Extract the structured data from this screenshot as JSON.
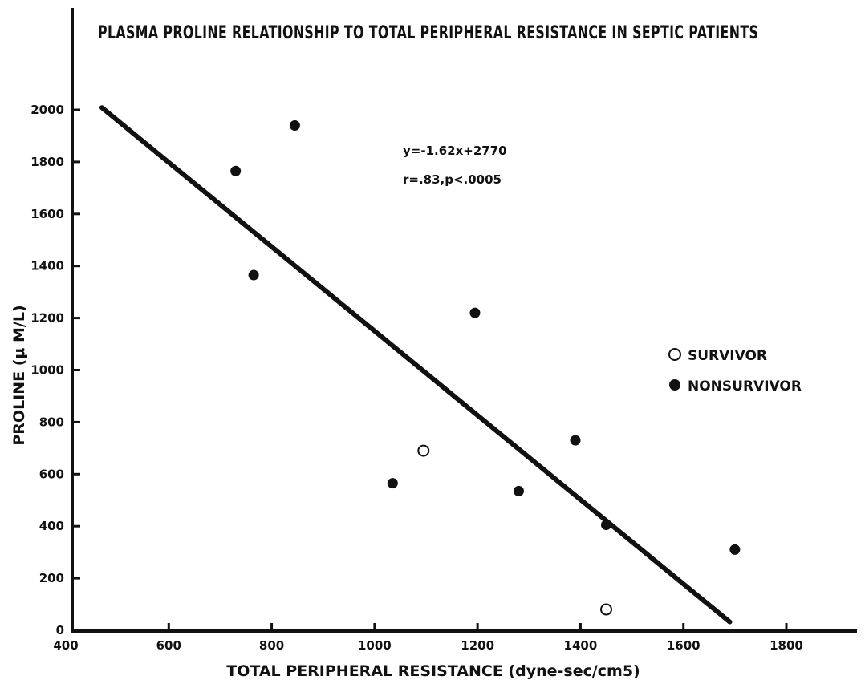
{
  "chart_data": {
    "type": "scatter",
    "title": "PLASMA PROLINE RELATIONSHIP TO TOTAL PERIPHERAL RESISTANCE IN SEPTIC PATIENTS",
    "xlabel": "TOTAL PERIPHERAL RESISTANCE (dyne-sec/cm5)",
    "ylabel": "PROLINE (μ M/L)",
    "xlim": [
      400,
      1900
    ],
    "ylim": [
      0,
      2000
    ],
    "x_ticks": [
      "400",
      "600",
      "800",
      "1000",
      "1200",
      "1400",
      "1600",
      "1800"
    ],
    "y_ticks": [
      "0",
      "200",
      "400",
      "600",
      "800",
      "1000",
      "1200",
      "1400",
      "1600",
      "1800",
      "2000"
    ],
    "grid": false,
    "legend_position": "right",
    "series": [
      {
        "name": "SURVIVOR",
        "marker": "open-circle",
        "points": [
          {
            "x": 1095,
            "y": 690
          },
          {
            "x": 1450,
            "y": 80
          }
        ]
      },
      {
        "name": "NONSURVIVOR",
        "marker": "filled-circle",
        "points": [
          {
            "x": 730,
            "y": 1765
          },
          {
            "x": 765,
            "y": 1365
          },
          {
            "x": 845,
            "y": 1940
          },
          {
            "x": 1035,
            "y": 565
          },
          {
            "x": 1195,
            "y": 1220
          },
          {
            "x": 1280,
            "y": 535
          },
          {
            "x": 1390,
            "y": 730
          },
          {
            "x": 1450,
            "y": 405
          },
          {
            "x": 1700,
            "y": 310
          }
        ]
      }
    ],
    "regression": {
      "equation": "y=-1.62x+2770",
      "stats": "r=.83,p<.0005",
      "x_start": 470,
      "x_end": 1690
    }
  },
  "colors": {
    "ink": "#111111",
    "background": "#ffffff"
  }
}
